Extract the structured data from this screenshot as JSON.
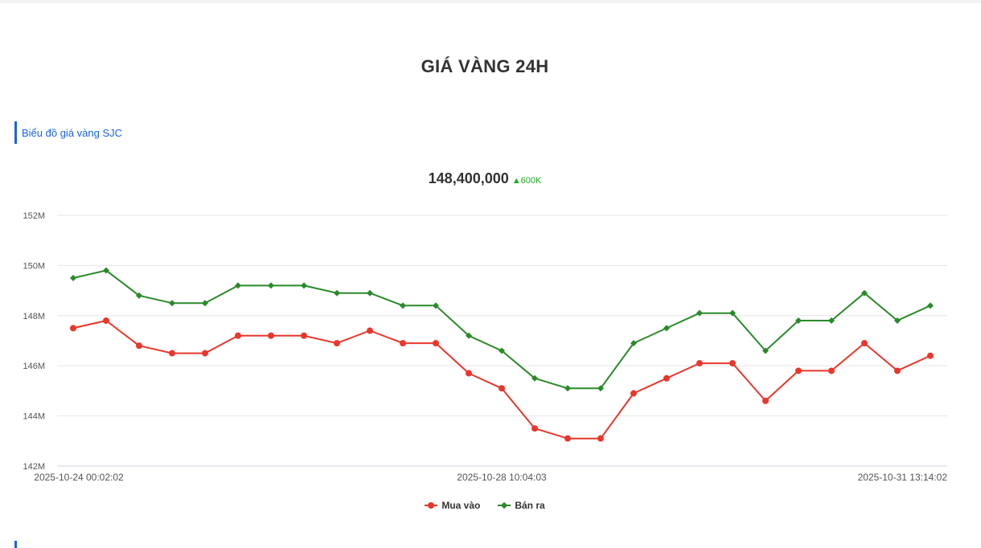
{
  "header": {
    "title": "GIÁ VÀNG 24H"
  },
  "section": {
    "title": "Biểu đồ giá vàng SJC"
  },
  "summary": {
    "price": "148,400,000",
    "delta": "▲600K",
    "delta_color": "#1aae1a"
  },
  "legend": [
    {
      "label": "Mua vào",
      "color": "#e8372b",
      "marker": "circle"
    },
    {
      "label": "Bán ra",
      "color": "#2a8a2a",
      "marker": "diamond"
    }
  ],
  "axis": {
    "y_ticks": [
      "152M",
      "150M",
      "148M",
      "146M",
      "144M",
      "142M"
    ],
    "x_ticks": [
      "2025-10-24 00:02:02",
      "2025-10-28 10:04:03",
      "2025-10-31 13:14:02"
    ]
  },
  "chart_data": {
    "type": "line",
    "title": "Biểu đồ giá vàng SJC",
    "xlabel": "",
    "ylabel": "",
    "ylim": [
      142,
      152
    ],
    "y_unit": "M VND",
    "grid": true,
    "legend_position": "bottom",
    "x_tick_labels": [
      "2025-10-24 00:02:02",
      "2025-10-28 10:04:03",
      "2025-10-31 13:14:02"
    ],
    "x": [
      1,
      2,
      3,
      4,
      5,
      6,
      7,
      8,
      9,
      10,
      11,
      12,
      13,
      14,
      15,
      16,
      17,
      18,
      19,
      20,
      21,
      22,
      23,
      24,
      25,
      26,
      27
    ],
    "series": [
      {
        "name": "Mua vào",
        "color": "#e8372b",
        "values": [
          147.5,
          147.8,
          146.8,
          146.5,
          146.5,
          147.2,
          147.2,
          147.2,
          146.9,
          147.4,
          146.9,
          146.9,
          145.7,
          145.1,
          143.5,
          143.1,
          143.1,
          144.9,
          145.5,
          146.1,
          146.1,
          144.6,
          145.8,
          145.8,
          146.9,
          145.8,
          146.4
        ]
      },
      {
        "name": "Bán ra",
        "color": "#2a8a2a",
        "values": [
          149.5,
          149.8,
          148.8,
          148.5,
          148.5,
          149.2,
          149.2,
          149.2,
          148.9,
          148.9,
          148.4,
          148.4,
          147.2,
          146.6,
          145.5,
          145.1,
          145.1,
          146.9,
          147.5,
          148.1,
          148.1,
          146.6,
          147.8,
          147.8,
          148.9,
          147.8,
          148.4
        ]
      }
    ]
  }
}
